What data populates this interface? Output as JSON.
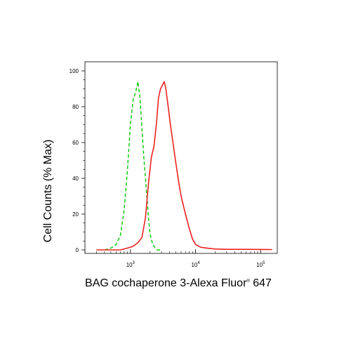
{
  "chart_data": {
    "type": "line",
    "xlabel": "BAG cochaperone 3-Alexa Fluor",
    "xlabel_superscript": "®",
    "xlabel_suffix": " 647",
    "ylabel": "Cell Counts (% Max)",
    "xscale": "log",
    "xlim": [
      200,
      180000
    ],
    "ylim": [
      0,
      100
    ],
    "y_ticks": [
      0,
      20,
      40,
      60,
      80,
      100
    ],
    "x_ticks": [
      {
        "value": 1000,
        "base": "10",
        "exp": "3"
      },
      {
        "value": 10000,
        "base": "10",
        "exp": "4"
      },
      {
        "value": 100000,
        "base": "10",
        "exp": "5"
      }
    ],
    "grid": false,
    "legend": false,
    "series": [
      {
        "color": "#22cc22",
        "dash": "dashed",
        "x": [
          400,
          500,
          600,
          700,
          800,
          900,
          1000,
          1100,
          1200,
          1300,
          1400,
          1500,
          1600,
          1700,
          1800,
          1900,
          2000,
          2200,
          2400,
          2600,
          3000
        ],
        "y": [
          0,
          1,
          3,
          8,
          22,
          45,
          70,
          84,
          88,
          94,
          85,
          68,
          52,
          40,
          28,
          17,
          9,
          3,
          1,
          0,
          0
        ]
      },
      {
        "color": "#ee2222",
        "dash": "solid",
        "x": [
          300,
          500,
          700,
          900,
          1100,
          1300,
          1500,
          1700,
          1900,
          2100,
          2300,
          2500,
          2700,
          2900,
          3100,
          3300,
          3500,
          3800,
          4100,
          4500,
          5000,
          5500,
          6000,
          7000,
          8000,
          9000,
          10000,
          12000,
          15000,
          20000,
          30000,
          60000,
          150000
        ],
        "y": [
          0,
          0,
          0,
          1,
          2,
          4,
          7,
          18,
          38,
          52,
          58,
          70,
          85,
          90,
          92,
          94,
          90,
          80,
          70,
          60,
          48,
          38,
          30,
          20,
          12,
          6,
          3,
          1.5,
          1,
          0.5,
          0.3,
          0.3,
          0.2
        ]
      }
    ]
  }
}
